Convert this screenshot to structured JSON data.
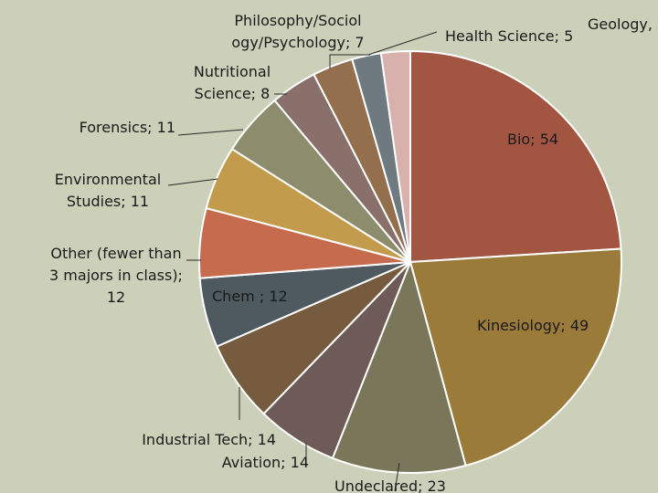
{
  "chart_data": {
    "type": "pie",
    "title": "",
    "slices": [
      {
        "label": "Bio",
        "value": 54,
        "color": "#a25642"
      },
      {
        "label": "Kinesiology",
        "value": 49,
        "color": "#9b7b3a"
      },
      {
        "label": "Undeclared",
        "value": 23,
        "color": "#7a7659"
      },
      {
        "label": "Aviation",
        "value": 14,
        "color": "#6e5a57"
      },
      {
        "label": "Industrial Tech",
        "value": 14,
        "color": "#765b3e"
      },
      {
        "label": "Chem",
        "value": 12,
        "color": "#4f5960"
      },
      {
        "label": "Other (fewer than 3 majors in class)",
        "value": 12,
        "color": "#c76b4f"
      },
      {
        "label": "Environmental Studies",
        "value": 11,
        "color": "#c29b4c"
      },
      {
        "label": "Forensics",
        "value": 11,
        "color": "#8d8c6c"
      },
      {
        "label": "Nutritional Science",
        "value": 8,
        "color": "#8a706b"
      },
      {
        "label": "Philosophy/Sociology/Psychology",
        "value": 7,
        "color": "#946f4d"
      },
      {
        "label": "Health Science",
        "value": 5,
        "color": "#6e7a80"
      },
      {
        "label": "Geology",
        "value": 5,
        "color": "#d8b0ac"
      }
    ],
    "label_lines": [
      [
        "Bio; 54"
      ],
      [
        "Kinesiology; 49"
      ],
      [
        "Undeclared; 23"
      ],
      [
        "Aviation; 14"
      ],
      [
        "Industrial Tech; 14"
      ],
      [
        "Chem ; 12"
      ],
      [
        "Other (fewer than",
        "3 majors in class);",
        "12"
      ],
      [
        "Environmental",
        "Studies; 11"
      ],
      [
        "Forensics; 11"
      ],
      [
        "Nutritional",
        "Science; 8"
      ],
      [
        "Philosophy/Sociol",
        "ogy/Psychology; 7"
      ],
      [
        "Health Science; 5"
      ],
      [
        "Geology,"
      ]
    ],
    "legend": "none"
  }
}
